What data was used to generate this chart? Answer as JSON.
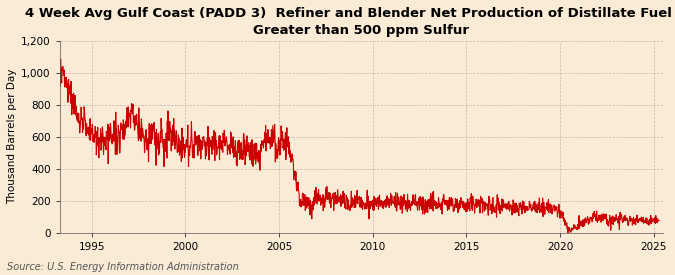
{
  "title": "4 Week Avg Gulf Coast (PADD 3)  Refiner and Blender Net Production of Distillate Fuel Oil\nGreater than 500 ppm Sulfur",
  "ylabel": "Thousand Barrels per Day",
  "source": "Source: U.S. Energy Information Administration",
  "line_color": "#cc0000",
  "background_color": "#faebd7",
  "plot_bg_color": "#faebd7",
  "grid_color": "#999999",
  "ylim": [
    0,
    1200
  ],
  "yticks": [
    0,
    200,
    400,
    600,
    800,
    1000,
    1200
  ],
  "ytick_labels": [
    "0",
    "200",
    "400",
    "600",
    "800",
    "1,000",
    "1,200"
  ],
  "xticks": [
    1995,
    2000,
    2005,
    2010,
    2015,
    2020,
    2025
  ],
  "xmin": 1993.3,
  "xmax": 2025.5,
  "title_fontsize": 9.5,
  "ylabel_fontsize": 7.5,
  "tick_fontsize": 7.5,
  "source_fontsize": 7.0,
  "line_width": 0.8
}
